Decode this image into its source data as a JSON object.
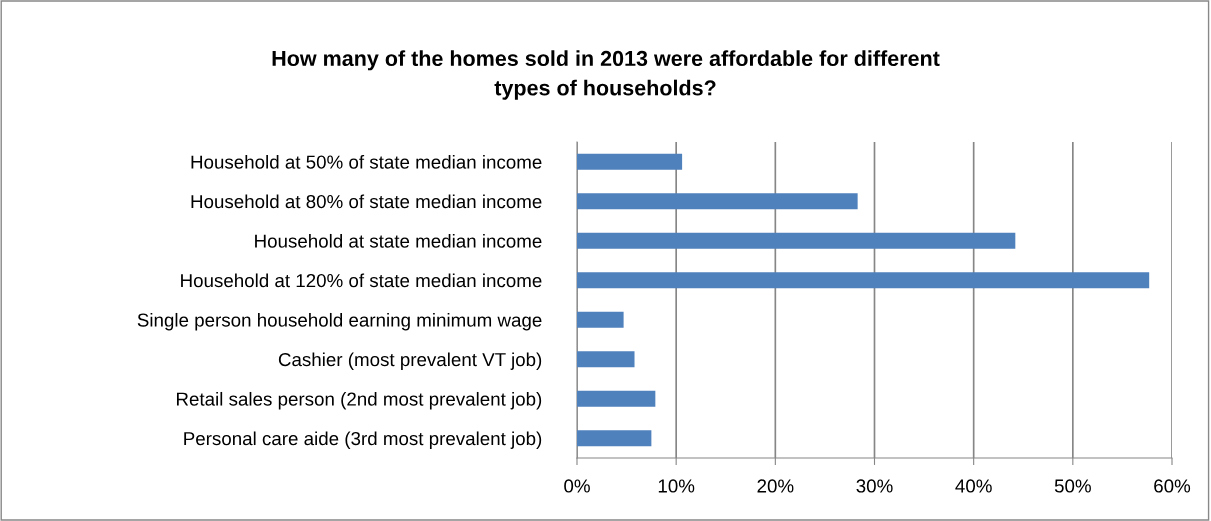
{
  "chart_data": {
    "type": "bar",
    "orientation": "horizontal",
    "title": "How many of the homes sold in 2013 were affordable for different\ntypes of households?",
    "categories": [
      "Household at 50% of state median income",
      "Household at 80% of state median income",
      "Household at state median income",
      "Household at 120% of state median income",
      "Single person household earning minimum wage",
      "Cashier (most prevalent VT job)",
      "Retail sales person (2nd most prevalent job)",
      "Personal care aide (3rd most prevalent job)"
    ],
    "values": [
      10.6,
      28.3,
      44.2,
      57.7,
      4.7,
      5.8,
      7.9,
      7.5
    ],
    "color": "#4f81bd",
    "xlim": [
      0,
      60
    ],
    "xticks": [
      {
        "value": 0,
        "label": "0%"
      },
      {
        "value": 10,
        "label": "10%"
      },
      {
        "value": 20,
        "label": "20%"
      },
      {
        "value": 30,
        "label": "30%"
      },
      {
        "value": 40,
        "label": "40%"
      },
      {
        "value": 50,
        "label": "50%"
      },
      {
        "value": 60,
        "label": "60%"
      }
    ],
    "grid": "x"
  }
}
